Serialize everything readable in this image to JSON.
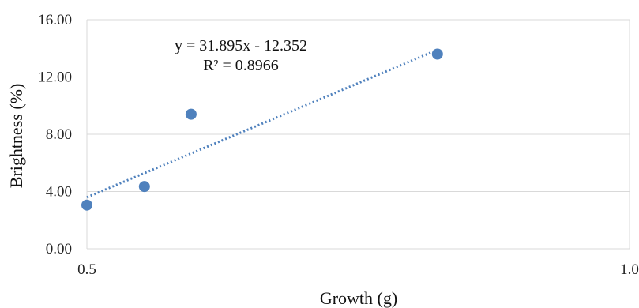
{
  "chart_data": {
    "type": "scatter",
    "xlabel": "Growth (g)",
    "ylabel": "Brightness (%)",
    "xlim": [
      0.5,
      1.0
    ],
    "ylim": [
      0,
      16
    ],
    "x_ticks": [
      0.5,
      1.0
    ],
    "x_tick_labels": [
      "0.5",
      "1.0"
    ],
    "y_ticks": [
      0,
      4,
      8,
      12,
      16
    ],
    "y_tick_labels": [
      "0.00",
      "4.00",
      "8.00",
      "12.00",
      "16.00"
    ],
    "grid": "horizontal",
    "series": [
      {
        "points": [
          {
            "x": 0.5,
            "y": 3.05
          },
          {
            "x": 0.553,
            "y": 4.35
          },
          {
            "x": 0.596,
            "y": 9.4
          },
          {
            "x": 0.823,
            "y": 13.6
          }
        ],
        "color": "#4f81bd"
      }
    ],
    "trendline": {
      "type": "linear",
      "color": "#4f81bd",
      "style": "dotted",
      "slope": 31.895,
      "intercept": -12.352,
      "x_range": [
        0.5,
        0.823
      ],
      "equation": "y = 31.895x - 12.352",
      "r_squared": "R² = 0.8966"
    }
  }
}
